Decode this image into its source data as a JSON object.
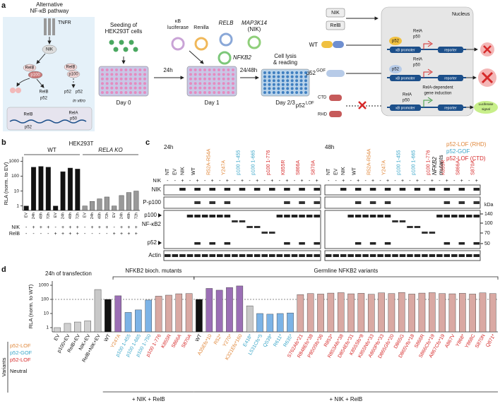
{
  "figure": {
    "a": {
      "label": "a",
      "pathway_title": [
        "Alternative",
        "NF-κB pathway"
      ],
      "tnfr": "TNFR",
      "nik": "NIK",
      "relb_complex": "RelB",
      "p100_complex": "p100",
      "relb_free": "RelB",
      "p100_free": "p100",
      "relb_p52": [
        "RelB",
        "p52"
      ],
      "p52_p52": [
        "p52",
        "p52"
      ],
      "in_vitro": "in vitro",
      "nuc_relb": "RelB",
      "nuc_p52": "p52",
      "nuc_rela": "RelA",
      "nuc_p50": "p50",
      "seeding": [
        "Seeding of",
        "HEK293T cells"
      ],
      "day0": "Day 0",
      "kb_luc": [
        "κB",
        "luciferase"
      ],
      "renilla": "Renilla",
      "relb_plasmid": "RELB",
      "map3k14": "MAP3K14",
      "nik_plasmid": "(NIK)",
      "nfkb2_plasmid": "NFKB2",
      "t24": "24h",
      "day1": "Day 1",
      "t2448": "24/48h",
      "lysis": [
        "Cell lysis",
        "& reading"
      ],
      "day23": "Day 2/3",
      "scheme": {
        "nik": "NIK",
        "relb": "RelB",
        "wt": "WT",
        "gof": "p52",
        "gof_sup": "GOF",
        "lof": "p52",
        "lof_sup": "LOF",
        "ctd": "CTD",
        "rhd": "RHD",
        "nucleus": "Nucleus",
        "rela": [
          "RelA",
          "RelA",
          "RelA"
        ],
        "p50": [
          "p50",
          "p50",
          "p50"
        ],
        "p52": [
          "p52",
          "p52"
        ],
        "promoter": [
          "κB promoter",
          "κB promoter",
          "κB promoter"
        ],
        "reporter": [
          "reporter",
          "reporter",
          "reporter"
        ],
        "induction": [
          "RelA-dependent",
          "gene induction"
        ],
        "luciferase": [
          "Luciferase",
          "signal"
        ]
      }
    },
    "c": {
      "label": "c",
      "timepoints": [
        "24h",
        "48h"
      ],
      "lanes": [
        {
          "label": "NT",
          "color": "#111111"
        },
        {
          "label": "EV",
          "color": "#111111"
        },
        {
          "label": "NIK",
          "color": "#111111"
        },
        {
          "label": "WT",
          "color": "#111111"
        },
        {
          "label": "R52A-R54A",
          "color": "#e0873a"
        },
        {
          "label": "Y247A",
          "color": "#e0873a"
        },
        {
          "label": "p100 1-455",
          "color": "#3aa6c8"
        },
        {
          "label": "p100 1-665",
          "color": "#3aa6c8"
        },
        {
          "label": "p100 1-776",
          "color": "#d62a2a"
        },
        {
          "label": "K855R",
          "color": "#d62a2a"
        },
        {
          "label": "S866A",
          "color": "#d62a2a"
        },
        {
          "label": "S870A",
          "color": "#d62a2a"
        }
      ],
      "nik_row_label": "NIK",
      "nik_signs": [
        "-",
        "-",
        "+",
        "-",
        "+",
        "-",
        "+",
        "-",
        "+",
        "-",
        "+",
        "-",
        "+",
        "-",
        "+",
        "-",
        "+",
        "-",
        "+",
        "-",
        "+"
      ],
      "rows": [
        "NIK",
        "P-p100",
        "p100",
        "NF-κB2",
        "p52",
        "Actin"
      ],
      "kda": "kDa",
      "kda_ticks": [
        140,
        100,
        70,
        50
      ],
      "legend_title": [
        "NFKB2",
        "mutants"
      ],
      "legend": [
        {
          "label": "p52-LOF (RHD)",
          "color": "#e0873a"
        },
        {
          "label": "p52-GOF",
          "color": "#3aa6c8"
        },
        {
          "label": "p52-LOF (CTD)",
          "color": "#d62a2a"
        }
      ]
    },
    "d_label": "d",
    "b_label": "b"
  },
  "chart_data": [
    {
      "type": "bar",
      "title": "HEK293T",
      "y_label": "RLA (norm. to EV)",
      "groups": [
        "WT",
        "RELA KO"
      ],
      "categories": [
        "EV",
        "24h",
        "48h",
        "72h",
        "EV",
        "24h",
        "48h",
        "72h",
        "EV",
        "24h",
        "48h",
        "72h",
        "EV",
        "24h",
        "48h",
        "72h"
      ],
      "values": [
        1,
        400,
        450,
        400,
        1,
        200,
        350,
        300,
        1,
        2,
        3,
        4,
        1,
        5,
        8,
        10
      ],
      "bar_colors": [
        "#111111",
        "#111111",
        "#111111",
        "#111111",
        "#111111",
        "#111111",
        "#111111",
        "#111111",
        "#999999",
        "#999999",
        "#999999",
        "#999999",
        "#999999",
        "#999999",
        "#999999",
        "#999999"
      ],
      "log_scale": true,
      "ylim": [
        0.5,
        2000
      ],
      "yticks": [
        1,
        10,
        100,
        1000
      ],
      "row_labels": [
        "NIK",
        "RelB"
      ],
      "rows": [
        [
          "-",
          "+",
          "+",
          "+",
          "-",
          "+",
          "+",
          "+",
          "-",
          "+",
          "+",
          "+",
          "-",
          "+",
          "+",
          "+"
        ],
        [
          "-",
          "-",
          "-",
          "-",
          "+",
          "+",
          "+",
          "+",
          "-",
          "-",
          "-",
          "-",
          "+",
          "+",
          "+",
          "+"
        ]
      ]
    },
    {
      "type": "bar",
      "title": "24h of transfection",
      "y_label": "RLA (norm. to WT)",
      "categories": [
        "EV",
        "p100+EV",
        "RelB+EV",
        "NIK+EV",
        "RelB+NIK+EV",
        "WT",
        "Y247A",
        "p100 1-455",
        "p100 1-665",
        "p100 1-750",
        "p100 1-776",
        "K855R",
        "S866A",
        "S870A",
        "WT",
        "A35Efs*10",
        "R52*",
        "Y270*",
        "K321Efs*160",
        "E418*",
        "L531Cfs*5",
        "Q539*",
        "R611*",
        "R635*",
        "S762Afs*21",
        "R848Efs*38",
        "P850Sfs*36",
        "R853*",
        "R853Afs*38",
        "D854Efs*31",
        "K855Sfs*8",
        "K855Nfs*33",
        "A860Pfs*33",
        "D865Gfs*20",
        "D865G",
        "D865Vfs*18",
        "S866R",
        "S866Cfs*19",
        "A867Cfs*19",
        "A867V",
        "Y868*",
        "Y868C",
        "S870N",
        "Q871*"
      ],
      "values": [
        1,
        2,
        2.5,
        3,
        500,
        100,
        180,
        12,
        18,
        90,
        170,
        200,
        250,
        260,
        100,
        600,
        450,
        700,
        900,
        35,
        10,
        9,
        10,
        11,
        220,
        260,
        240,
        280,
        300,
        250,
        270,
        230,
        290,
        260,
        310,
        240,
        280,
        300,
        260,
        250,
        270,
        240,
        290,
        260
      ],
      "label_colors": [
        "#111111",
        "#111111",
        "#111111",
        "#111111",
        "#111111",
        "#111111",
        "#e0873a",
        "#3aa6c8",
        "#3aa6c8",
        "#3aa6c8",
        "#d62a2a",
        "#d62a2a",
        "#d62a2a",
        "#d62a2a",
        "#111111",
        "#e0873a",
        "#e0873a",
        "#e0873a",
        "#e0873a",
        "#3aa6c8",
        "#3aa6c8",
        "#3aa6c8",
        "#3aa6c8",
        "#3aa6c8",
        "#d62a2a",
        "#d62a2a",
        "#d62a2a",
        "#d62a2a",
        "#d62a2a",
        "#d62a2a",
        "#d62a2a",
        "#d62a2a",
        "#d62a2a",
        "#d62a2a",
        "#d62a2a",
        "#d62a2a",
        "#d62a2a",
        "#d62a2a",
        "#d62a2a",
        "#d62a2a",
        "#d62a2a",
        "#d62a2a",
        "#d62a2a",
        "#d62a2a"
      ],
      "bar_colors": [
        "#d0d0d0",
        "#d0d0d0",
        "#d0d0d0",
        "#d0d0d0",
        "#c8c8c8",
        "#111111",
        "#9b6fb5",
        "#7cb3e6",
        "#7cb3e6",
        "#7cb3e6",
        "#d9a9a3",
        "#d9a9a3",
        "#d9a9a3",
        "#d9a9a3",
        "#111111",
        "#9b6fb5",
        "#9b6fb5",
        "#9b6fb5",
        "#9b6fb5",
        "#c8c8c8",
        "#7cb3e6",
        "#7cb3e6",
        "#7cb3e6",
        "#7cb3e6",
        "#d9a9a3",
        "#d9a9a3",
        "#d9a9a3",
        "#d9a9a3",
        "#d9a9a3",
        "#d9a9a3",
        "#d9a9a3",
        "#d9a9a3",
        "#d9a9a3",
        "#d9a9a3",
        "#d9a9a3",
        "#d9a9a3",
        "#d9a9a3",
        "#d9a9a3",
        "#d9a9a3",
        "#d9a9a3",
        "#d9a9a3",
        "#d9a9a3",
        "#d9a9a3",
        "#d9a9a3"
      ],
      "log_scale": true,
      "ylim": [
        0.5,
        2000
      ],
      "yticks": [
        1,
        10,
        100,
        1000
      ],
      "reference_line": 100,
      "brackets": [
        "NFKB2 bioch. mutants",
        "Germline NFKB2 variants"
      ],
      "conditions": [
        "+ NIK + RelB",
        "+ NIK + RelB"
      ],
      "legend_title": "Variants",
      "legend": [
        {
          "label": "p52-LOF",
          "color": "#e0873a"
        },
        {
          "label": "p52-GOF",
          "color": "#3aa6c8"
        },
        {
          "label": "p52-LOF",
          "color": "#d62a2a"
        },
        {
          "label": "Neutral",
          "color": "#111111"
        }
      ]
    }
  ]
}
